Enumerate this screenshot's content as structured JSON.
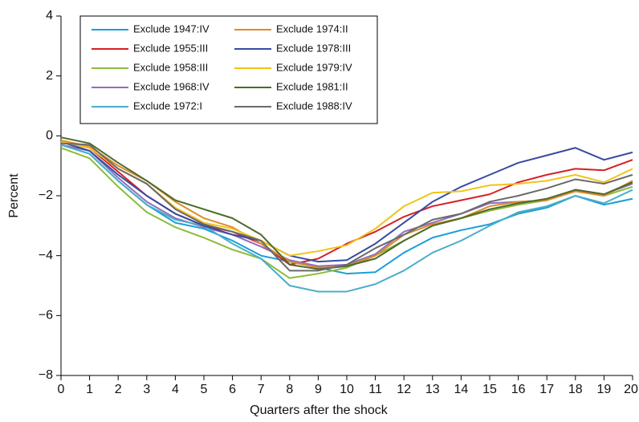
{
  "chart_data": {
    "type": "line",
    "x_label": "Quarters after the shock",
    "y_label": "Percent",
    "x": [
      0,
      1,
      2,
      3,
      4,
      5,
      6,
      7,
      8,
      9,
      10,
      11,
      12,
      13,
      14,
      15,
      16,
      17,
      18,
      19,
      20
    ],
    "xlim": [
      0,
      20
    ],
    "xticks": [
      0,
      1,
      2,
      3,
      4,
      5,
      6,
      7,
      8,
      9,
      10,
      11,
      12,
      13,
      14,
      15,
      16,
      17,
      18,
      19,
      20
    ],
    "ylim": [
      -8,
      4
    ],
    "yticks": [
      {
        "value": -8,
        "label": "−8"
      },
      {
        "value": -6,
        "label": "−6"
      },
      {
        "value": -4,
        "label": "−4"
      },
      {
        "value": -2,
        "label": "−2"
      },
      0,
      2,
      4
    ],
    "legend": "upper left",
    "series": [
      {
        "name": "Exclude 1947:IV",
        "color": "#1a9ed8",
        "values": [
          -0.3,
          -0.6,
          -1.5,
          -2.3,
          -2.9,
          -3.1,
          -3.5,
          -4.0,
          -4.2,
          -4.4,
          -4.6,
          -4.55,
          -3.9,
          -3.4,
          -3.15,
          -2.95,
          -2.6,
          -2.4,
          -2.0,
          -2.3,
          -2.1
        ]
      },
      {
        "name": "Exclude 1955:III",
        "color": "#d62027",
        "values": [
          -0.2,
          -0.4,
          -1.2,
          -2.0,
          -2.6,
          -3.0,
          -3.2,
          -3.6,
          -4.3,
          -4.1,
          -3.6,
          -3.2,
          -2.7,
          -2.35,
          -2.15,
          -1.95,
          -1.55,
          -1.3,
          -1.1,
          -1.15,
          -0.8
        ]
      },
      {
        "name": "Exclude 1958:III",
        "color": "#8dbb3a",
        "values": [
          -0.4,
          -0.75,
          -1.7,
          -2.55,
          -3.05,
          -3.4,
          -3.8,
          -4.1,
          -4.75,
          -4.6,
          -4.4,
          -4.0,
          -3.5,
          -3.0,
          -2.75,
          -2.5,
          -2.3,
          -2.15,
          -1.85,
          -2.0,
          -1.7
        ]
      },
      {
        "name": "Exclude 1968:IV",
        "color": "#8d6fbd",
        "values": [
          -0.3,
          -0.5,
          -1.4,
          -2.2,
          -2.75,
          -3.05,
          -3.3,
          -3.7,
          -4.15,
          -4.35,
          -4.3,
          -3.95,
          -3.2,
          -2.9,
          -2.6,
          -2.25,
          -2.2,
          -2.15,
          -1.8,
          -1.95,
          -1.6
        ]
      },
      {
        "name": "Exclude 1972:I",
        "color": "#4aaec8",
        "values": [
          -0.3,
          -0.6,
          -1.5,
          -2.3,
          -2.8,
          -3.0,
          -3.6,
          -4.1,
          -5.0,
          -5.2,
          -5.2,
          -4.95,
          -4.5,
          -3.9,
          -3.5,
          -3.0,
          -2.55,
          -2.35,
          -2.0,
          -2.25,
          -1.8
        ]
      },
      {
        "name": "Exclude 1974:II",
        "color": "#e08a2c",
        "values": [
          -0.15,
          -0.35,
          -1.0,
          -1.5,
          -2.2,
          -2.75,
          -3.05,
          -3.6,
          -4.2,
          -4.4,
          -4.35,
          -4.0,
          -3.3,
          -2.95,
          -2.75,
          -2.35,
          -2.2,
          -2.15,
          -1.85,
          -2.0,
          -1.5
        ]
      },
      {
        "name": "Exclude 1978:III",
        "color": "#3a4aa0",
        "values": [
          -0.2,
          -0.5,
          -1.3,
          -2.0,
          -2.6,
          -3.0,
          -3.3,
          -3.5,
          -4.0,
          -4.2,
          -4.15,
          -3.6,
          -2.9,
          -2.2,
          -1.7,
          -1.3,
          -0.9,
          -0.65,
          -0.4,
          -0.8,
          -0.55
        ]
      },
      {
        "name": "Exclude 1979:IV",
        "color": "#f2c318",
        "values": [
          -0.2,
          -0.4,
          -1.1,
          -1.6,
          -2.4,
          -2.9,
          -3.1,
          -3.5,
          -4.0,
          -3.85,
          -3.65,
          -3.1,
          -2.35,
          -1.9,
          -1.85,
          -1.65,
          -1.6,
          -1.5,
          -1.3,
          -1.55,
          -1.1
        ]
      },
      {
        "name": "Exclude 1981:II",
        "color": "#4e6a2a",
        "values": [
          -0.05,
          -0.25,
          -0.9,
          -1.5,
          -2.15,
          -2.45,
          -2.75,
          -3.3,
          -4.3,
          -4.45,
          -4.35,
          -4.1,
          -3.5,
          -3.0,
          -2.75,
          -2.45,
          -2.25,
          -2.1,
          -1.8,
          -1.95,
          -1.55
        ]
      },
      {
        "name": "Exclude 1988:IV",
        "color": "#6a6a6a",
        "values": [
          -0.25,
          -0.3,
          -1.1,
          -1.6,
          -2.45,
          -2.95,
          -3.2,
          -3.5,
          -4.5,
          -4.5,
          -4.3,
          -3.75,
          -3.3,
          -2.8,
          -2.6,
          -2.2,
          -2.0,
          -1.75,
          -1.45,
          -1.6,
          -1.3
        ]
      }
    ]
  }
}
